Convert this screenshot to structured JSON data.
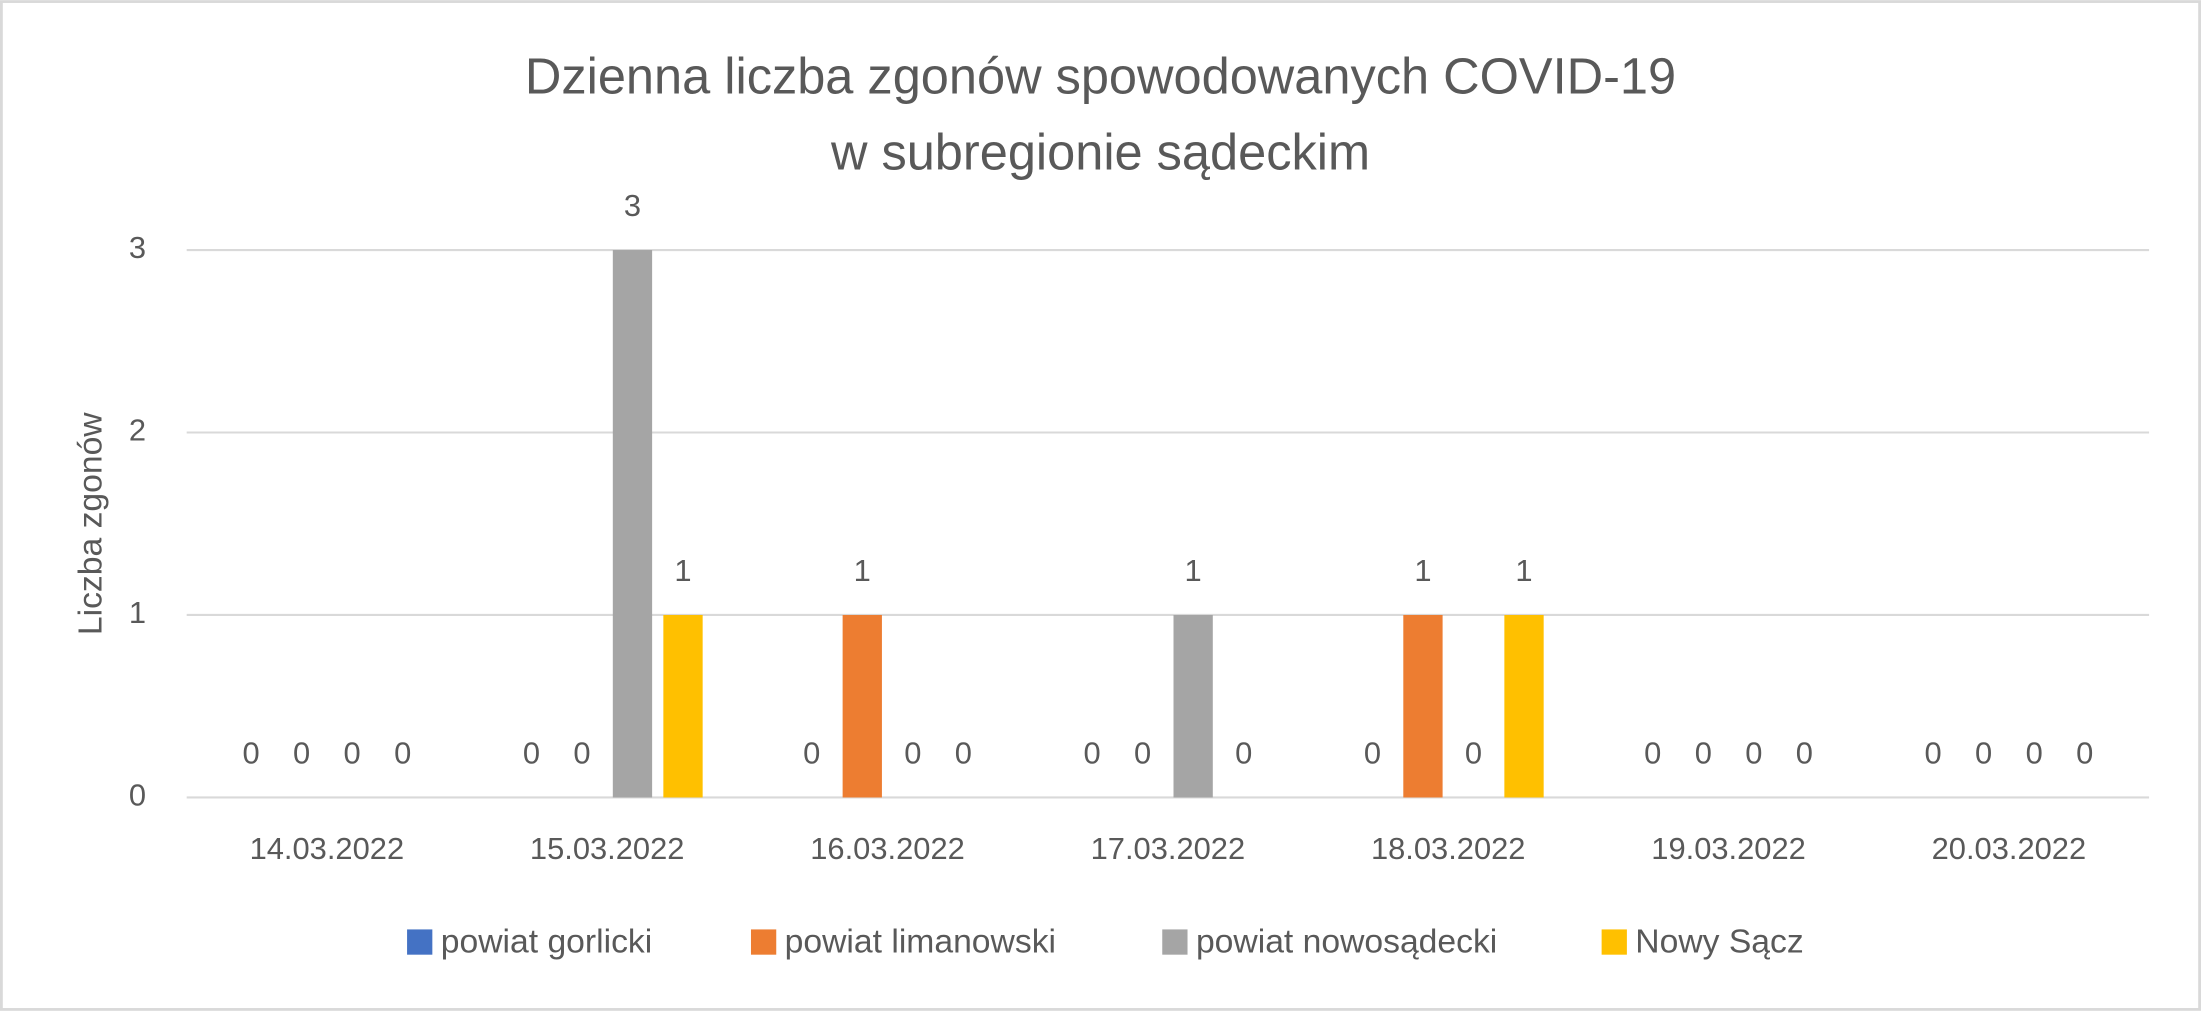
{
  "chart_data": {
    "type": "bar",
    "title": [
      "Dzienna liczba zgonów spowodowanych COVID-19",
      "w subregionie sądeckim"
    ],
    "y_label": "Liczba zgonów",
    "categories": [
      "14.03.2022",
      "15.03.2022",
      "16.03.2022",
      "17.03.2022",
      "18.03.2022",
      "19.03.2022",
      "20.03.2022"
    ],
    "series": [
      {
        "name": "powiat gorlicki",
        "color": "#4472c4",
        "values": [
          0,
          0,
          0,
          0,
          0,
          0,
          0
        ]
      },
      {
        "name": "powiat limanowski",
        "color": "#ed7d31",
        "values": [
          0,
          0,
          1,
          0,
          1,
          0,
          0
        ]
      },
      {
        "name": "powiat nowosądecki",
        "color": "#a5a5a5",
        "values": [
          0,
          3,
          0,
          1,
          0,
          0,
          0
        ]
      },
      {
        "name": "Nowy Sącz",
        "color": "#ffc000",
        "values": [
          0,
          1,
          0,
          0,
          1,
          0,
          0
        ]
      }
    ],
    "ylim": [
      0,
      3
    ],
    "yticks": [
      0,
      1,
      2,
      3
    ],
    "grid": true,
    "legend": "bottom"
  }
}
